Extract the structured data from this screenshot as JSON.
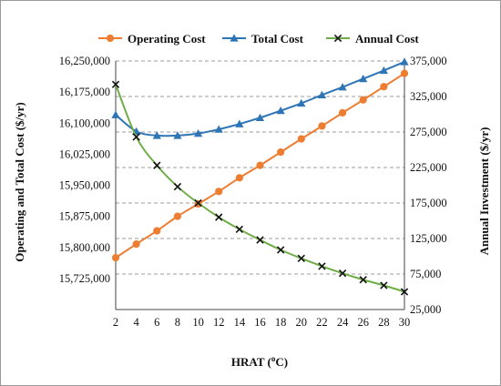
{
  "chart_data": {
    "type": "line",
    "title": "",
    "xlabel": "HRAT (oC)",
    "xlabel_parts": {
      "pre": "HRAT (",
      "sup": "o",
      "post": "C)"
    },
    "ylabel_left": "Operating and Total Cost ($/yr)",
    "ylabel_right": "Annual Investment ($/yr)",
    "x": [
      2,
      4,
      6,
      8,
      10,
      12,
      14,
      16,
      18,
      20,
      22,
      24,
      26,
      28,
      30
    ],
    "xlim": [
      2,
      30
    ],
    "x_ticks": [
      "2",
      "4",
      "6",
      "8",
      "10",
      "12",
      "14",
      "16",
      "18",
      "20",
      "22",
      "24",
      "26",
      "28",
      "30"
    ],
    "ylim_left": [
      15650000,
      16250000
    ],
    "y_ticks_left": [
      {
        "value": 15725000,
        "label": "15,725,000"
      },
      {
        "value": 15800000,
        "label": "15,800,000"
      },
      {
        "value": 15875000,
        "label": "15,875,000"
      },
      {
        "value": 15950000,
        "label": "15,950,000"
      },
      {
        "value": 16025000,
        "label": "16,025,000"
      },
      {
        "value": 16100000,
        "label": "16,100,000"
      },
      {
        "value": 16175000,
        "label": "16,175,000"
      },
      {
        "value": 16250000,
        "label": "16,250,000"
      }
    ],
    "ylim_right": [
      25000,
      375000
    ],
    "y_ticks_right": [
      {
        "value": 25000,
        "label": "25,000"
      },
      {
        "value": 75000,
        "label": "75,000"
      },
      {
        "value": 125000,
        "label": "125,000"
      },
      {
        "value": 175000,
        "label": "175,000"
      },
      {
        "value": 225000,
        "label": "225,000"
      },
      {
        "value": 275000,
        "label": "275,000"
      },
      {
        "value": 325000,
        "label": "325,000"
      },
      {
        "value": 375000,
        "label": "375,000"
      }
    ],
    "grid": "horizontal dashed at right-axis ticks",
    "legend_position": "top",
    "series": [
      {
        "name": "Operating Cost",
        "axis": "left",
        "color": "#ED7D31",
        "marker": "circle",
        "values": [
          15775000,
          15808000,
          15840000,
          15875000,
          15905000,
          15935000,
          15968000,
          15998000,
          16030000,
          16062000,
          16093000,
          16125000,
          16156000,
          16188000,
          16220000
        ]
      },
      {
        "name": "Total Cost",
        "axis": "left",
        "color": "#2E75B6",
        "marker": "triangle",
        "values": [
          16120000,
          16080000,
          16070000,
          16070000,
          16075000,
          16085000,
          16098000,
          16113000,
          16130000,
          16148000,
          16168000,
          16187000,
          16207000,
          16227000,
          16248000
        ]
      },
      {
        "name": "Annual Cost",
        "axis": "right",
        "color": "#70AD47",
        "marker": "x",
        "values": [
          342000,
          268000,
          228000,
          198000,
          175000,
          155000,
          138000,
          123000,
          109000,
          97000,
          86000,
          76000,
          67000,
          59000,
          50000
        ]
      }
    ]
  }
}
